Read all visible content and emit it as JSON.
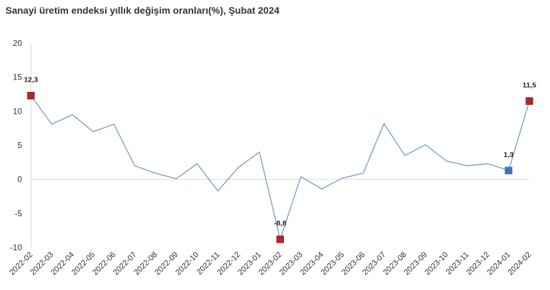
{
  "chart_data": {
    "type": "line",
    "title": "Sanayi üretim endeksi yıllık değişim oranları(%), Şubat 2024",
    "xlabel": "",
    "ylabel": "",
    "ylim": [
      -10,
      20
    ],
    "yticks": [
      -10,
      -5,
      0,
      5,
      10,
      15,
      20
    ],
    "ytick_labels": [
      "-10",
      "-5",
      "0",
      "5",
      "10",
      "15",
      "20"
    ],
    "grid": false,
    "zero_line": true,
    "legend": "none",
    "categories": [
      "2022-02",
      "2022-03",
      "2022-04",
      "2022-05",
      "2022-06",
      "2022-07",
      "2022-08",
      "2022-09",
      "2022-10",
      "2022-11",
      "2022-12",
      "2023-01",
      "2023-02",
      "2023-03",
      "2023-04",
      "2023-05",
      "2023-06",
      "2023-07",
      "2023-08",
      "2023-09",
      "2023-10",
      "2023-11",
      "2023-12",
      "2024-01",
      "2024-02"
    ],
    "series": [
      {
        "values": [
          12.3,
          8.1,
          9.5,
          7.0,
          8.1,
          2.0,
          0.9,
          0.1,
          2.3,
          -1.7,
          1.8,
          4.0,
          -8.8,
          0.4,
          -1.4,
          0.2,
          0.9,
          8.2,
          3.5,
          5.1,
          2.7,
          2.0,
          2.3,
          1.3,
          11.5
        ],
        "color": "#6f9ac7"
      }
    ],
    "highlights": [
      {
        "index": 0,
        "label": "12,3",
        "color": "#a52a2a"
      },
      {
        "index": 12,
        "label": "-8,8",
        "color": "#a52a2a"
      },
      {
        "index": 23,
        "label": "1,3",
        "color": "#3d78b5"
      },
      {
        "index": 24,
        "label": "11,5",
        "color": "#a52a2a"
      }
    ]
  }
}
